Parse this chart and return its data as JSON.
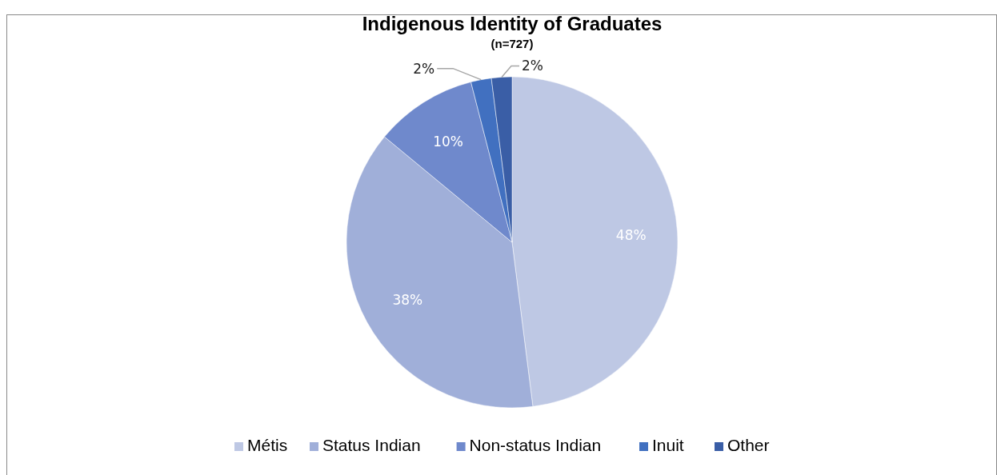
{
  "chart_data": {
    "type": "pie",
    "title": "Indigenous Identity of Graduates",
    "subtitle": "(n=727)",
    "categories": [
      "Métis",
      "Status Indian",
      "Non-status Indian",
      "Inuit",
      "Other"
    ],
    "values": [
      48,
      38,
      10,
      2,
      2
    ],
    "colors": [
      "#bec8e4",
      "#a0afd9",
      "#6f89cc",
      "#4170c0",
      "#3a5ea6"
    ],
    "value_labels": [
      "48%",
      "38%",
      "10%",
      "2%",
      "2%"
    ],
    "legend": "bottom"
  }
}
